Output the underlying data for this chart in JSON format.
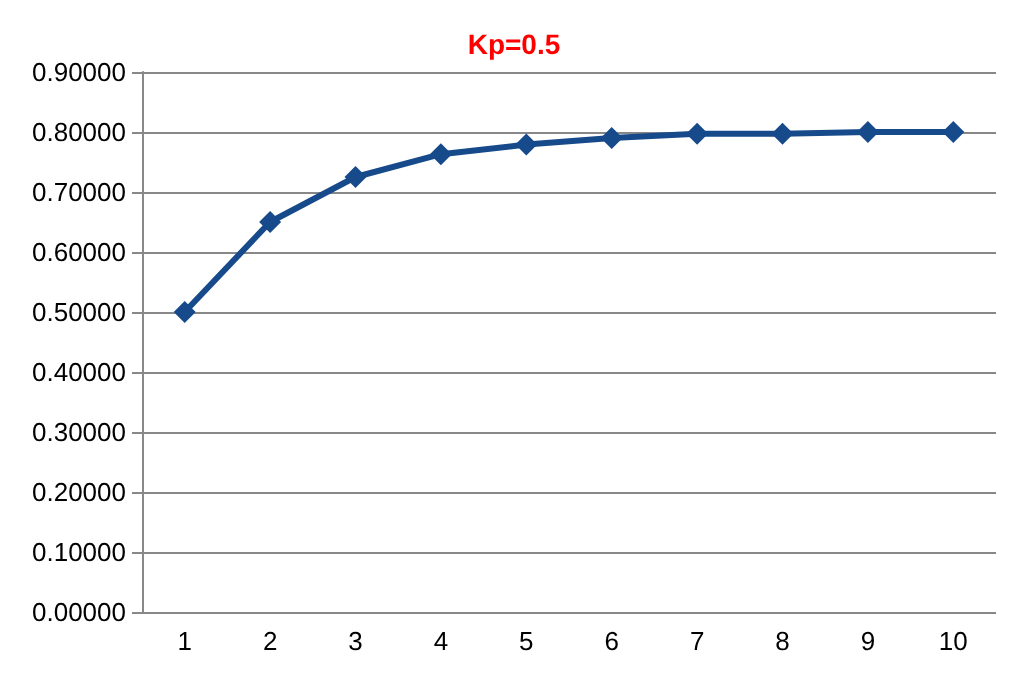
{
  "chart_data": {
    "type": "line",
    "title": "Kp=0.5",
    "categories": [
      "1",
      "2",
      "3",
      "4",
      "5",
      "6",
      "7",
      "8",
      "9",
      "10"
    ],
    "series": [
      {
        "color": "#174a8b",
        "values": [
          0.5,
          0.65,
          0.725,
          0.763,
          0.779,
          0.79,
          0.797,
          0.797,
          0.8,
          0.8
        ]
      }
    ],
    "ylim": [
      0,
      0.9
    ],
    "yticks": [
      {
        "value": 0,
        "label": "0.00000"
      },
      {
        "value": 0.1,
        "label": "0.10000"
      },
      {
        "value": 0.2,
        "label": "0.20000"
      },
      {
        "value": 0.3,
        "label": "0.30000"
      },
      {
        "value": 0.4,
        "label": "0.40000"
      },
      {
        "value": 0.5,
        "label": "0.50000"
      },
      {
        "value": 0.6,
        "label": "0.60000"
      },
      {
        "value": 0.7,
        "label": "0.70000"
      },
      {
        "value": 0.8,
        "label": "0.80000"
      },
      {
        "value": 0.9,
        "label": "0.90000"
      }
    ],
    "grid": "y",
    "marker": "diamond",
    "line_style": "solid"
  }
}
